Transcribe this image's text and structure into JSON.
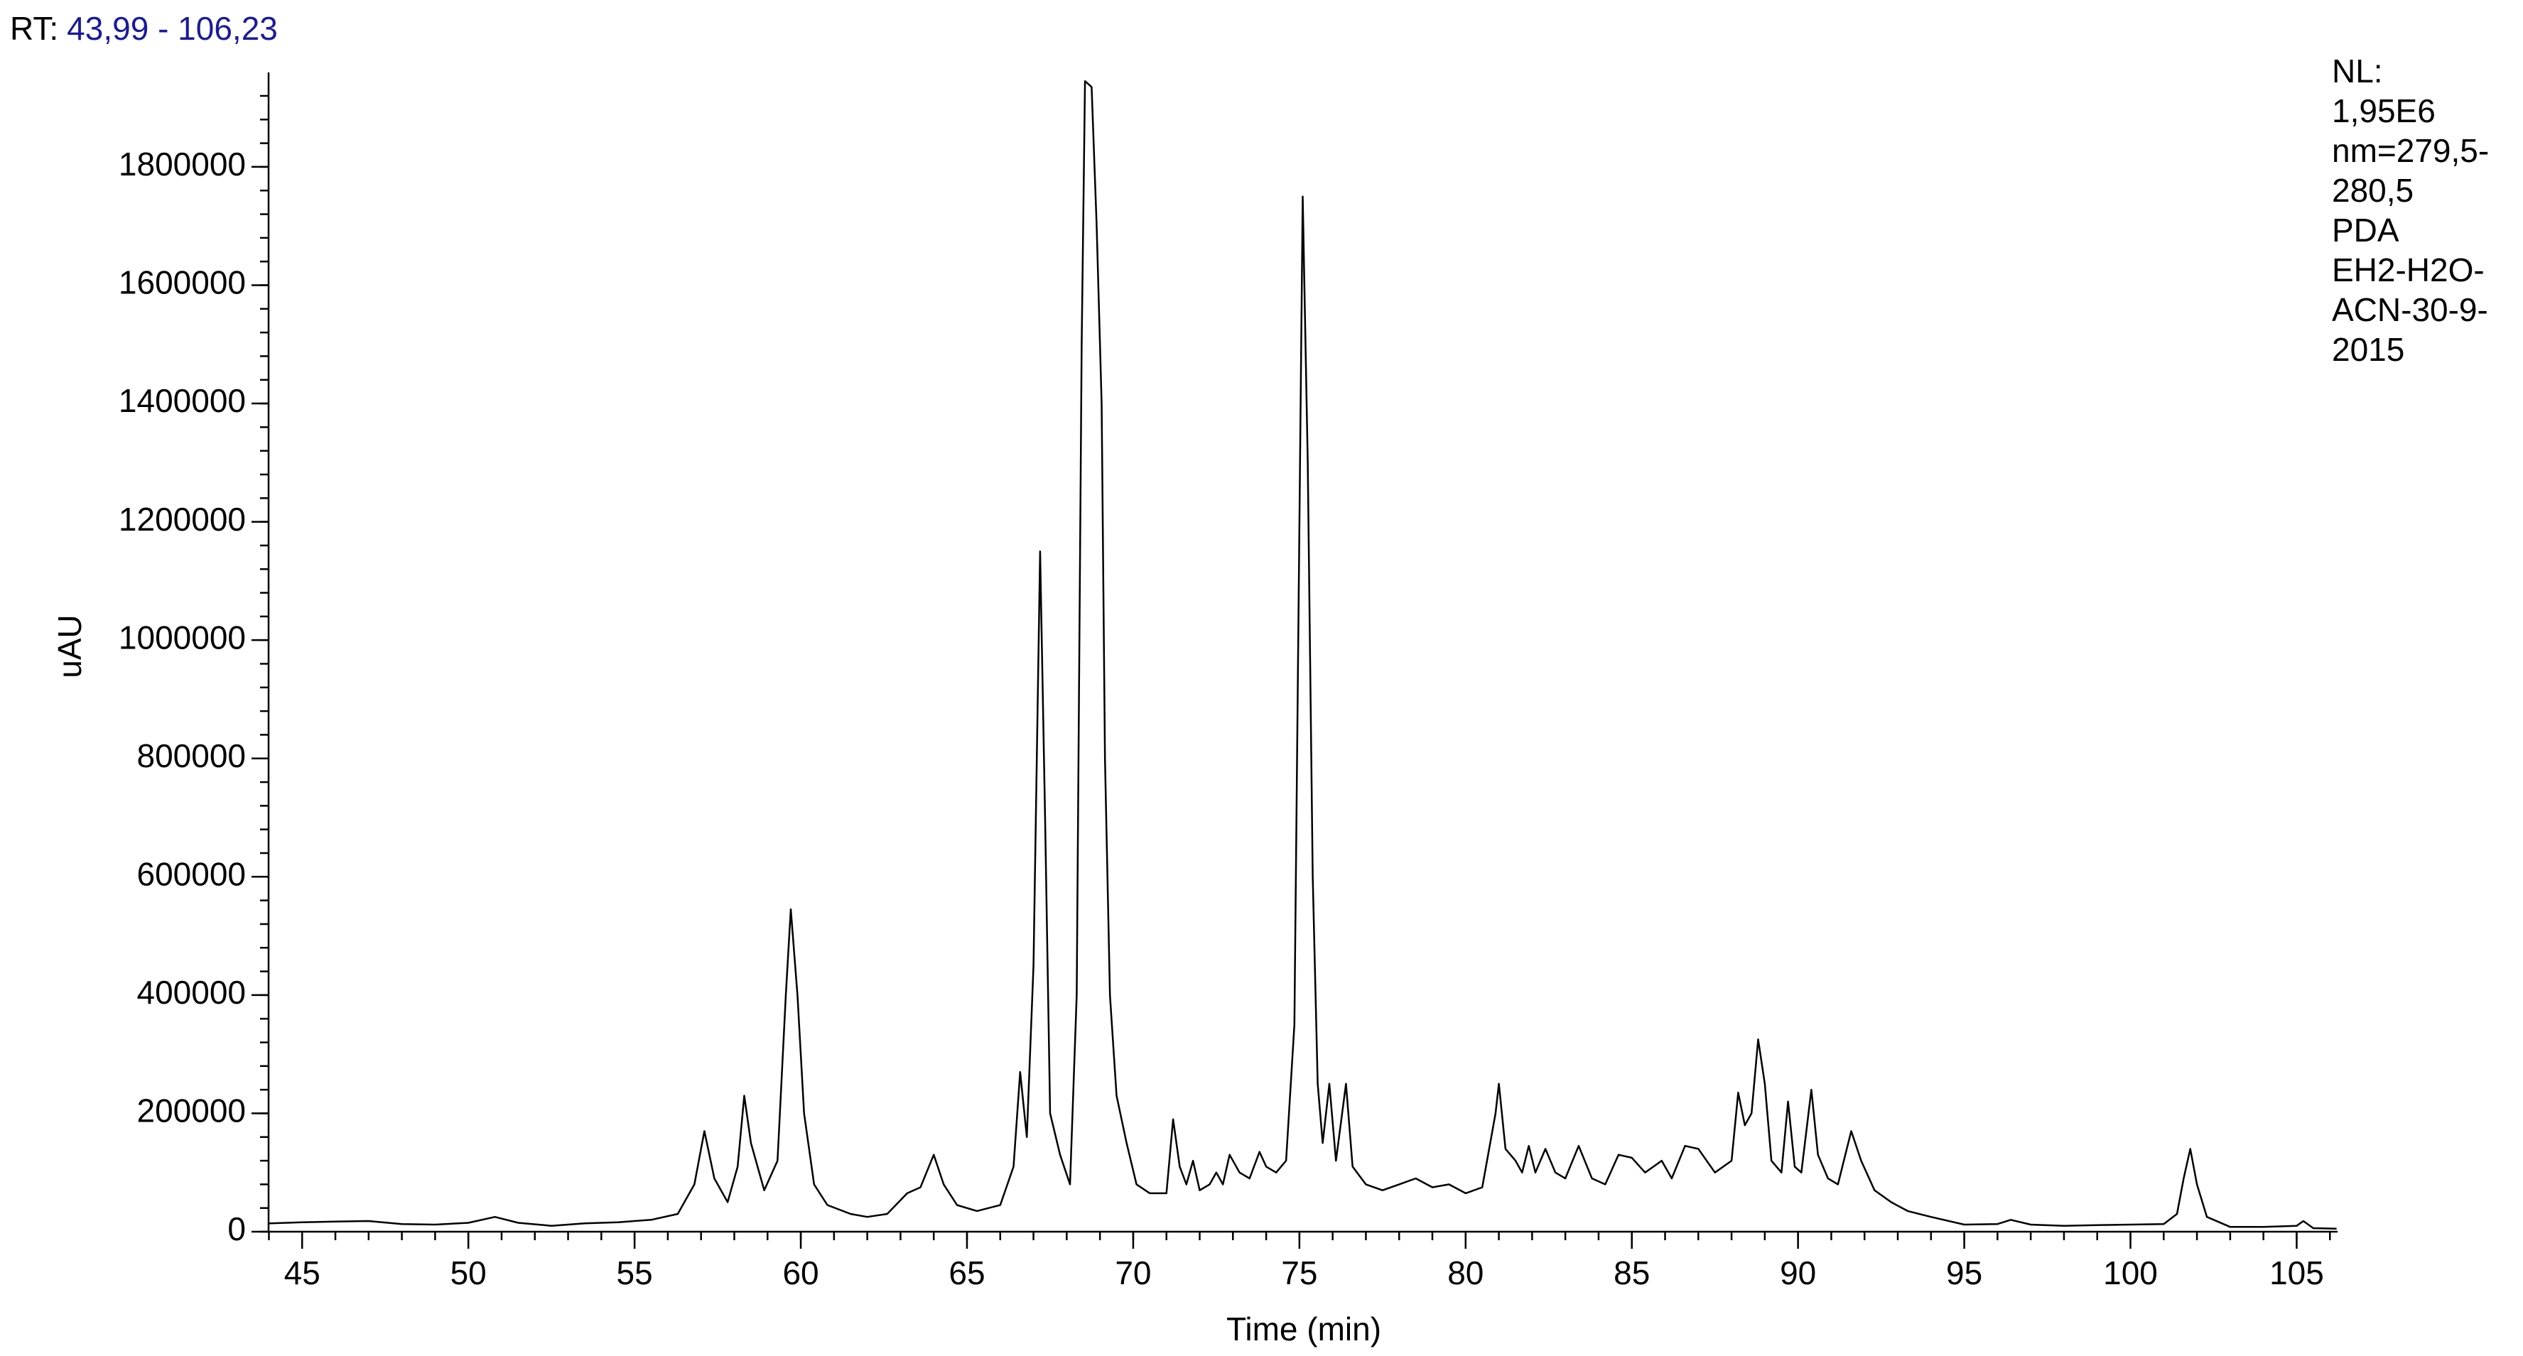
{
  "chart_data": {
    "type": "line",
    "rt_label": "RT:",
    "rt_range": "43,99 - 106,23",
    "info_lines": [
      "NL:",
      "1,95E6",
      "nm=279,5-",
      "280,5",
      "PDA",
      "EH2-H2O-",
      "ACN-30-9-",
      "2015"
    ],
    "xlabel": "Time (min)",
    "ylabel": "uAU",
    "color": "#000000",
    "xlim": [
      43.99,
      106.23
    ],
    "ylim": [
      0,
      1950000
    ],
    "xticks": [
      45,
      50,
      55,
      60,
      65,
      70,
      75,
      80,
      85,
      90,
      95,
      100,
      105
    ],
    "yticks": [
      0,
      200000,
      400000,
      600000,
      800000,
      1000000,
      1200000,
      1400000,
      1600000,
      1800000
    ],
    "xminor": [
      44,
      45,
      46,
      47,
      48,
      49,
      50,
      51,
      52,
      53,
      54,
      55,
      56,
      57,
      58,
      59,
      60,
      61,
      62,
      63,
      64,
      65,
      66,
      67,
      68,
      69,
      70,
      71,
      72,
      73,
      74,
      75,
      76,
      77,
      78,
      79,
      80,
      81,
      82,
      83,
      84,
      85,
      86,
      87,
      88,
      89,
      90,
      91,
      92,
      93,
      94,
      95,
      96,
      97,
      98,
      99,
      100,
      101,
      102,
      103,
      104,
      105,
      106
    ],
    "yminor": [
      0,
      40000,
      80000,
      120000,
      160000,
      200000,
      240000,
      280000,
      320000,
      360000,
      400000,
      440000,
      480000,
      520000,
      560000,
      600000,
      640000,
      680000,
      720000,
      760000,
      800000,
      840000,
      880000,
      920000,
      960000,
      1000000,
      1040000,
      1080000,
      1120000,
      1160000,
      1200000,
      1240000,
      1280000,
      1320000,
      1360000,
      1400000,
      1440000,
      1480000,
      1520000,
      1560000,
      1600000,
      1640000,
      1680000,
      1720000,
      1760000,
      1800000,
      1840000,
      1880000,
      1920000
    ],
    "x": [
      44.0,
      45.0,
      46.0,
      47.0,
      48.0,
      49.0,
      50.0,
      50.8,
      51.5,
      52.5,
      53.5,
      54.5,
      55.5,
      56.3,
      56.8,
      57.1,
      57.4,
      57.8,
      58.1,
      58.3,
      58.5,
      58.9,
      59.3,
      59.55,
      59.7,
      59.9,
      60.1,
      60.4,
      60.8,
      61.5,
      62.0,
      62.6,
      63.2,
      63.6,
      64.0,
      64.3,
      64.7,
      65.3,
      66.0,
      66.4,
      66.6,
      66.8,
      67.0,
      67.2,
      67.35,
      67.5,
      67.8,
      68.1,
      68.3,
      68.45,
      68.55,
      68.75,
      68.9,
      69.05,
      69.15,
      69.3,
      69.5,
      69.8,
      70.1,
      70.5,
      71.0,
      71.2,
      71.4,
      71.6,
      71.8,
      72.0,
      72.3,
      72.5,
      72.7,
      72.9,
      73.2,
      73.5,
      73.8,
      74.0,
      74.3,
      74.6,
      74.85,
      75.0,
      75.1,
      75.25,
      75.4,
      75.55,
      75.7,
      75.9,
      76.1,
      76.4,
      76.6,
      77.0,
      77.5,
      78.0,
      78.5,
      79.0,
      79.5,
      80.0,
      80.5,
      80.9,
      81.0,
      81.2,
      81.5,
      81.7,
      81.9,
      82.1,
      82.4,
      82.7,
      83.0,
      83.4,
      83.8,
      84.2,
      84.6,
      85.0,
      85.4,
      85.9,
      86.2,
      86.6,
      87.0,
      87.5,
      88.0,
      88.2,
      88.4,
      88.6,
      88.8,
      89.0,
      89.2,
      89.5,
      89.7,
      89.9,
      90.1,
      90.4,
      90.6,
      90.9,
      91.2,
      91.6,
      91.9,
      92.3,
      92.8,
      93.3,
      94.0,
      95.0,
      96.0,
      96.4,
      97.0,
      98.0,
      99.0,
      100.0,
      101.0,
      101.4,
      101.6,
      101.8,
      102.0,
      102.3,
      103.0,
      104.0,
      105.0,
      105.2,
      105.5,
      106.2
    ],
    "values": [
      14000,
      16000,
      17000,
      18000,
      13000,
      12000,
      15000,
      25000,
      15000,
      10000,
      14000,
      16000,
      20000,
      30000,
      80000,
      170000,
      90000,
      50000,
      110000,
      230000,
      150000,
      70000,
      120000,
      400000,
      545000,
      400000,
      200000,
      80000,
      45000,
      30000,
      25000,
      30000,
      65000,
      75000,
      130000,
      80000,
      45000,
      35000,
      45000,
      110000,
      270000,
      160000,
      450000,
      1150000,
      700000,
      200000,
      130000,
      80000,
      400000,
      1500000,
      1945000,
      1935000,
      1700000,
      1400000,
      800000,
      400000,
      230000,
      150000,
      80000,
      65000,
      65000,
      190000,
      110000,
      80000,
      120000,
      70000,
      80000,
      100000,
      80000,
      130000,
      100000,
      90000,
      135000,
      110000,
      100000,
      120000,
      350000,
      1200000,
      1750000,
      1300000,
      600000,
      250000,
      150000,
      250000,
      120000,
      250000,
      110000,
      80000,
      70000,
      80000,
      90000,
      75000,
      80000,
      65000,
      75000,
      200000,
      250000,
      140000,
      120000,
      100000,
      145000,
      100000,
      140000,
      100000,
      90000,
      145000,
      90000,
      80000,
      130000,
      125000,
      100000,
      120000,
      90000,
      145000,
      140000,
      100000,
      120000,
      235000,
      180000,
      200000,
      325000,
      250000,
      120000,
      100000,
      220000,
      110000,
      100000,
      240000,
      130000,
      90000,
      80000,
      170000,
      120000,
      70000,
      50000,
      35000,
      25000,
      12000,
      13000,
      20000,
      12000,
      10000,
      11000,
      12000,
      13000,
      30000,
      90000,
      140000,
      80000,
      25000,
      8000,
      8000,
      10000,
      18000,
      6000,
      5000
    ]
  }
}
